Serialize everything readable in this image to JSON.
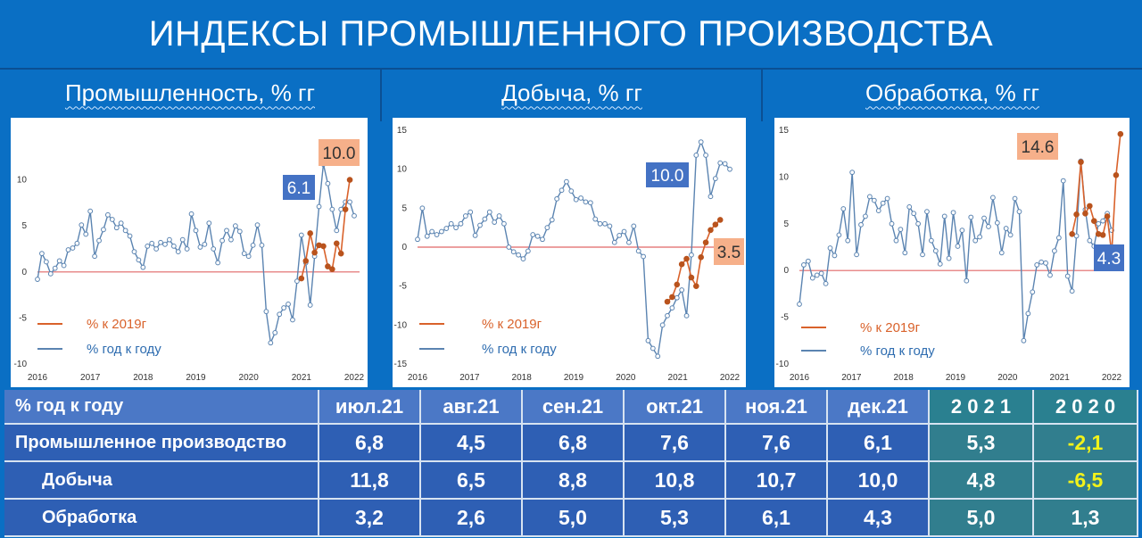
{
  "title": "ИНДЕКСЫ ПРОМЫШЛЕННОГО ПРОИЗВОДСТВА",
  "panels": [
    {
      "label": "Промышленность, % гг"
    },
    {
      "label": "Добыча, % гг"
    },
    {
      "label": "Обработка, % гг"
    }
  ],
  "legend": {
    "series_2019": "% к 2019г",
    "series_yoy": "% год к году"
  },
  "colors": {
    "background": "#0a6fc4",
    "yoy_line": "#5b84b1",
    "vs2019_line": "#d9622b",
    "vs2019_point": "#b9531d",
    "zero_line": "#e06666",
    "callout_blue": "#4472c4",
    "callout_orange": "#f6b08a",
    "table_header": "#4b78c6",
    "table_teal": "#2a8090",
    "highlight": "#f2f21a"
  },
  "chart_data": [
    {
      "type": "line",
      "title": "Промышленность, % гг",
      "x_labels": [
        "2016",
        "2017",
        "2018",
        "2019",
        "2020",
        "2021",
        "2022"
      ],
      "ylim": [
        -10,
        15
      ],
      "y_ticks": [
        -10,
        -5,
        0,
        5,
        10
      ],
      "callouts": [
        {
          "text": "6.1",
          "style": "blue"
        },
        {
          "text": "10.0",
          "style": "orange"
        }
      ],
      "series": [
        {
          "name": "% год к году",
          "values": [
            -0.8,
            2,
            1.1,
            -0.2,
            0.4,
            1.2,
            0.7,
            2.4,
            2.6,
            3.1,
            5.1,
            4.1,
            6.6,
            1.7,
            3.4,
            4.6,
            6.2,
            5.7,
            4.8,
            5.3,
            4.5,
            3.9,
            2.2,
            1.3,
            0.5,
            2.8,
            3.1,
            2.5,
            3.2,
            3.0,
            3.5,
            2.8,
            2.2,
            3.5,
            2.5,
            6.3,
            4.5,
            2.7,
            3.0,
            5.3,
            2.5,
            1.0,
            3.4,
            4.5,
            3.5,
            5.0,
            4.4,
            2.0,
            1.7,
            2.9,
            5.1,
            2.9,
            -4.3,
            -7.7,
            -6.6,
            -4.6,
            -3.9,
            -3.5,
            -5.2,
            -1.0,
            4.0,
            1.0,
            -3.6,
            1.7,
            7.1,
            11.7,
            9.6,
            6.8,
            4.5,
            6.8,
            7.6,
            7.6,
            6.1
          ]
        },
        {
          "name": "% к 2019г",
          "start_index": 60,
          "values": [
            -0.7,
            1.2,
            4.2,
            2.1,
            2.9,
            2.8,
            0.6,
            0.3,
            3.1,
            2.0,
            6.8,
            10.0
          ]
        }
      ]
    },
    {
      "type": "line",
      "title": "Добыча, % гг",
      "x_labels": [
        "2016",
        "2017",
        "2018",
        "2019",
        "2020",
        "2021",
        "2022"
      ],
      "ylim": [
        -15,
        15
      ],
      "y_ticks": [
        -15,
        -10,
        -5,
        0,
        5,
        10,
        15
      ],
      "callouts": [
        {
          "text": "10.0",
          "style": "blue"
        },
        {
          "text": "3.5",
          "style": "orange"
        }
      ],
      "series": [
        {
          "name": "% год к году",
          "values": [
            1,
            5,
            1.4,
            2,
            1.6,
            2,
            2.4,
            3,
            2.5,
            3,
            4,
            4.5,
            1.5,
            2.8,
            3.6,
            4.5,
            3.2,
            4,
            3,
            0,
            -0.6,
            -1,
            -1.5,
            -0.5,
            1.6,
            1.4,
            1,
            2.5,
            3.5,
            6.2,
            7.3,
            8.4,
            7.2,
            6.1,
            6.3,
            5.8,
            5.7,
            3.6,
            3.0,
            3,
            2.7,
            0.6,
            1.5,
            2,
            0.6,
            2.7,
            -0.5,
            -1.2,
            -12,
            -13,
            -14,
            -10,
            -8.8,
            -7.8,
            -6.5,
            -5.5,
            -8.8,
            -1,
            11.8,
            13.5,
            11.8,
            6.5,
            8.8,
            10.8,
            10.7,
            10
          ]
        },
        {
          "name": "% к 2019г",
          "start_index": 52,
          "values": [
            -7,
            -6.4,
            -4.8,
            -2.2,
            -1.5,
            -3.9,
            -5,
            -1.3,
            0.6,
            2.2,
            2.9,
            3.5
          ]
        }
      ]
    },
    {
      "type": "line",
      "title": "Обработка, % гг",
      "x_labels": [
        "2016",
        "2017",
        "2018",
        "2019",
        "2020",
        "2021",
        "2022"
      ],
      "ylim": [
        -10,
        15
      ],
      "y_ticks": [
        -10,
        -5,
        0,
        5,
        10,
        15
      ],
      "callouts": [
        {
          "text": "14.6",
          "style": "orange"
        },
        {
          "text": "4.3",
          "style": "blue"
        }
      ],
      "series": [
        {
          "name": "% год к году",
          "values": [
            -3.6,
            0.6,
            1,
            -0.8,
            -0.5,
            -0.3,
            -1.4,
            2.4,
            1.6,
            3.8,
            6.6,
            3.2,
            10.5,
            1.7,
            4.9,
            5.8,
            7.9,
            7.5,
            6.4,
            7.2,
            7.7,
            5,
            3.2,
            4.4,
            1.9,
            6.8,
            6.1,
            5,
            1.7,
            6.3,
            3.2,
            2.1,
            0.7,
            5.8,
            1.3,
            6.2,
            2.6,
            4.3,
            -1.1,
            5.7,
            3.2,
            3.6,
            5.6,
            4.7,
            7.8,
            5.1,
            1.9,
            4.5,
            3.8,
            7.7,
            6.3,
            -7.5,
            -4.6,
            -2.3,
            0.6,
            0.9,
            0.8,
            -0.5,
            2.1,
            3.5,
            9.6,
            -0.6,
            -2.2,
            3.7,
            11.7,
            6.5,
            3.2,
            2.6,
            5,
            5.3,
            6.1,
            4.3
          ]
        },
        {
          "name": "% к 2019г",
          "start_index": 62,
          "values": [
            3.9,
            6,
            11.6,
            6.1,
            6.9,
            5.3,
            3.9,
            3.8,
            5.8,
            1.8,
            10.2,
            14.6
          ]
        }
      ]
    }
  ],
  "table": {
    "headers": [
      "% год к году",
      "июл.21",
      "авг.21",
      "сен.21",
      "окт.21",
      "ноя.21",
      "дек.21",
      "2 0 2 1",
      "2 0 2 0"
    ],
    "rows": [
      {
        "label": "Промышленное производство",
        "values": [
          "6,8",
          "4,5",
          "6,8",
          "7,6",
          "7,6",
          "6,1",
          "5,3",
          "-2,1"
        ]
      },
      {
        "label": "Добыча",
        "values": [
          "11,8",
          "6,5",
          "8,8",
          "10,8",
          "10,7",
          "10,0",
          "4,8",
          "-6,5"
        ]
      },
      {
        "label": "Обработка",
        "values": [
          "3,2",
          "2,6",
          "5,0",
          "5,3",
          "6,1",
          "4,3",
          "5,0",
          "1,3"
        ]
      }
    ]
  }
}
